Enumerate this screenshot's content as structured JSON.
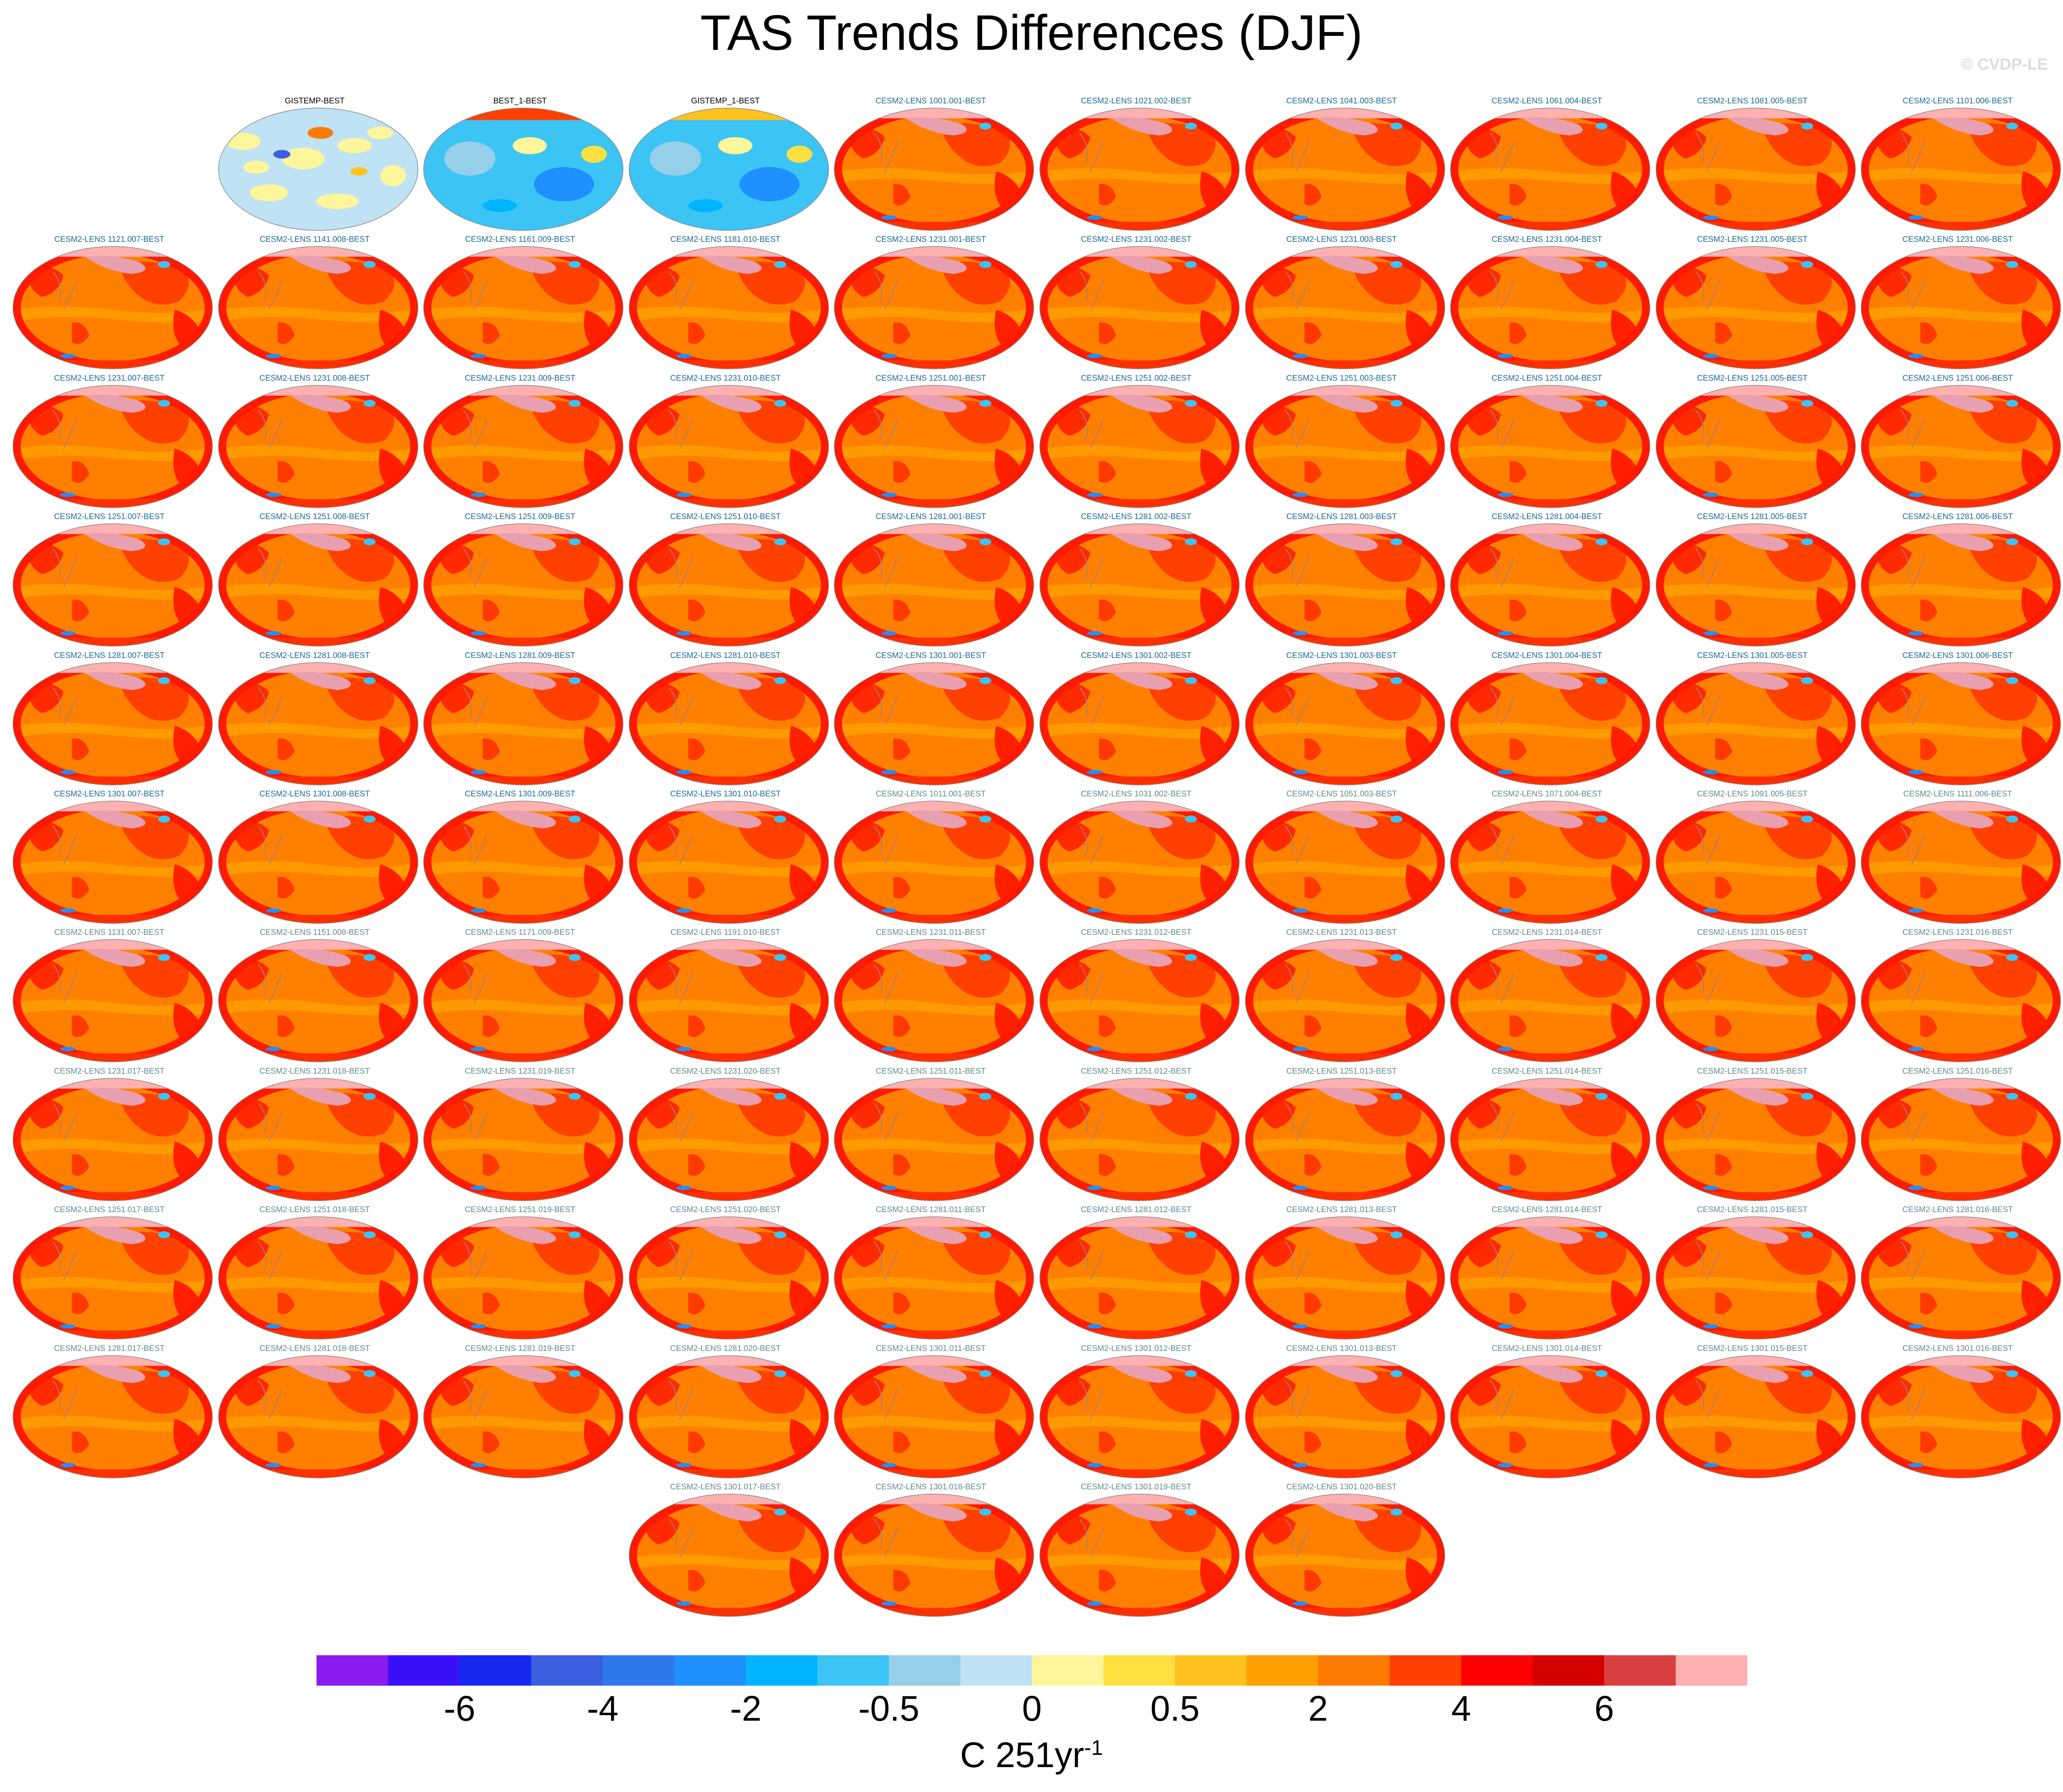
{
  "title": "TAS Trends Differences (DJF)",
  "watermark": "© CVDP-LE",
  "colors": {
    "obs_label": "#000000",
    "first_label": "#1a6a96",
    "second_label": "#5f8c8a"
  },
  "panels": [
    {
      "label": "GISTEMP-BEST",
      "kind": "obs-a"
    },
    {
      "label": "BEST_1-BEST",
      "kind": "obs-b"
    },
    {
      "label": "GISTEMP_1-BEST",
      "kind": "obs-c"
    },
    {
      "label": "CESM2-LENS 1001.001-BEST",
      "kind": "first"
    },
    {
      "label": "CESM2-LENS 1021.002-BEST",
      "kind": "first"
    },
    {
      "label": "CESM2-LENS 1041.003-BEST",
      "kind": "first"
    },
    {
      "label": "CESM2-LENS 1061.004-BEST",
      "kind": "first"
    },
    {
      "label": "CESM2-LENS 1081.005-BEST",
      "kind": "first"
    },
    {
      "label": "CESM2-LENS 1101.006-BEST",
      "kind": "first"
    },
    {
      "label": "CESM2-LENS 1121.007-BEST",
      "kind": "first"
    },
    {
      "label": "CESM2-LENS 1141.008-BEST",
      "kind": "first"
    },
    {
      "label": "CESM2-LENS 1161.009-BEST",
      "kind": "first"
    },
    {
      "label": "CESM2-LENS 1181.010-BEST",
      "kind": "first"
    },
    {
      "label": "CESM2-LENS 1231.001-BEST",
      "kind": "first"
    },
    {
      "label": "CESM2-LENS 1231.002-BEST",
      "kind": "first"
    },
    {
      "label": "CESM2-LENS 1231.003-BEST",
      "kind": "first"
    },
    {
      "label": "CESM2-LENS 1231.004-BEST",
      "kind": "first"
    },
    {
      "label": "CESM2-LENS 1231.005-BEST",
      "kind": "first"
    },
    {
      "label": "CESM2-LENS 1231.006-BEST",
      "kind": "first"
    },
    {
      "label": "CESM2-LENS 1231.007-BEST",
      "kind": "first"
    },
    {
      "label": "CESM2-LENS 1231.008-BEST",
      "kind": "first"
    },
    {
      "label": "CESM2-LENS 1231.009-BEST",
      "kind": "first"
    },
    {
      "label": "CESM2-LENS 1231.010-BEST",
      "kind": "first"
    },
    {
      "label": "CESM2-LENS 1251.001-BEST",
      "kind": "first"
    },
    {
      "label": "CESM2-LENS 1251.002-BEST",
      "kind": "first"
    },
    {
      "label": "CESM2-LENS 1251.003-BEST",
      "kind": "first"
    },
    {
      "label": "CESM2-LENS 1251.004-BEST",
      "kind": "first"
    },
    {
      "label": "CESM2-LENS 1251.005-BEST",
      "kind": "first"
    },
    {
      "label": "CESM2-LENS 1251.006-BEST",
      "kind": "first"
    },
    {
      "label": "CESM2-LENS 1251.007-BEST",
      "kind": "first"
    },
    {
      "label": "CESM2-LENS 1251.008-BEST",
      "kind": "first"
    },
    {
      "label": "CESM2-LENS 1251.009-BEST",
      "kind": "first"
    },
    {
      "label": "CESM2-LENS 1251.010-BEST",
      "kind": "first"
    },
    {
      "label": "CESM2-LENS 1281.001-BEST",
      "kind": "first"
    },
    {
      "label": "CESM2-LENS 1281.002-BEST",
      "kind": "first"
    },
    {
      "label": "CESM2-LENS 1281.003-BEST",
      "kind": "first"
    },
    {
      "label": "CESM2-LENS 1281.004-BEST",
      "kind": "first"
    },
    {
      "label": "CESM2-LENS 1281.005-BEST",
      "kind": "first"
    },
    {
      "label": "CESM2-LENS 1281.006-BEST",
      "kind": "first"
    },
    {
      "label": "CESM2-LENS 1281.007-BEST",
      "kind": "first"
    },
    {
      "label": "CESM2-LENS 1281.008-BEST",
      "kind": "first"
    },
    {
      "label": "CESM2-LENS 1281.009-BEST",
      "kind": "first"
    },
    {
      "label": "CESM2-LENS 1281.010-BEST",
      "kind": "first"
    },
    {
      "label": "CESM2-LENS 1301.001-BEST",
      "kind": "first"
    },
    {
      "label": "CESM2-LENS 1301.002-BEST",
      "kind": "first"
    },
    {
      "label": "CESM2-LENS 1301.003-BEST",
      "kind": "first"
    },
    {
      "label": "CESM2-LENS 1301.004-BEST",
      "kind": "first"
    },
    {
      "label": "CESM2-LENS 1301.005-BEST",
      "kind": "first"
    },
    {
      "label": "CESM2-LENS 1301.006-BEST",
      "kind": "first"
    },
    {
      "label": "CESM2-LENS 1301.007-BEST",
      "kind": "first"
    },
    {
      "label": "CESM2-LENS 1301.008-BEST",
      "kind": "first"
    },
    {
      "label": "CESM2-LENS 1301.009-BEST",
      "kind": "first"
    },
    {
      "label": "CESM2-LENS 1301.010-BEST",
      "kind": "first"
    },
    {
      "label": "CESM2-LENS 1011.001-BEST",
      "kind": "second"
    },
    {
      "label": "CESM2-LENS 1031.002-BEST",
      "kind": "second"
    },
    {
      "label": "CESM2-LENS 1051.003-BEST",
      "kind": "second"
    },
    {
      "label": "CESM2-LENS 1071.004-BEST",
      "kind": "second"
    },
    {
      "label": "CESM2-LENS 1091.005-BEST",
      "kind": "second"
    },
    {
      "label": "CESM2-LENS 1111.006-BEST",
      "kind": "second"
    },
    {
      "label": "CESM2-LENS 1131.007-BEST",
      "kind": "second"
    },
    {
      "label": "CESM2-LENS 1151.008-BEST",
      "kind": "second"
    },
    {
      "label": "CESM2-LENS 1171.009-BEST",
      "kind": "second"
    },
    {
      "label": "CESM2-LENS 1191.010-BEST",
      "kind": "second"
    },
    {
      "label": "CESM2-LENS 1231.011-BEST",
      "kind": "second"
    },
    {
      "label": "CESM2-LENS 1231.012-BEST",
      "kind": "second"
    },
    {
      "label": "CESM2-LENS 1231.013-BEST",
      "kind": "second"
    },
    {
      "label": "CESM2-LENS 1231.014-BEST",
      "kind": "second"
    },
    {
      "label": "CESM2-LENS 1231.015-BEST",
      "kind": "second"
    },
    {
      "label": "CESM2-LENS 1231.016-BEST",
      "kind": "second"
    },
    {
      "label": "CESM2-LENS 1231.017-BEST",
      "kind": "second"
    },
    {
      "label": "CESM2-LENS 1231.018-BEST",
      "kind": "second"
    },
    {
      "label": "CESM2-LENS 1231.019-BEST",
      "kind": "second"
    },
    {
      "label": "CESM2-LENS 1231.020-BEST",
      "kind": "second"
    },
    {
      "label": "CESM2-LENS 1251.011-BEST",
      "kind": "second"
    },
    {
      "label": "CESM2-LENS 1251.012-BEST",
      "kind": "second"
    },
    {
      "label": "CESM2-LENS 1251.013-BEST",
      "kind": "second"
    },
    {
      "label": "CESM2-LENS 1251.014-BEST",
      "kind": "second"
    },
    {
      "label": "CESM2-LENS 1251.015-BEST",
      "kind": "second"
    },
    {
      "label": "CESM2-LENS 1251.016-BEST",
      "kind": "second"
    },
    {
      "label": "CESM2-LENS 1251.017-BEST",
      "kind": "second"
    },
    {
      "label": "CESM2-LENS 1251.018-BEST",
      "kind": "second"
    },
    {
      "label": "CESM2-LENS 1251.019-BEST",
      "kind": "second"
    },
    {
      "label": "CESM2-LENS 1251.020-BEST",
      "kind": "second"
    },
    {
      "label": "CESM2-LENS 1281.011-BEST",
      "kind": "second"
    },
    {
      "label": "CESM2-LENS 1281.012-BEST",
      "kind": "second"
    },
    {
      "label": "CESM2-LENS 1281.013-BEST",
      "kind": "second"
    },
    {
      "label": "CESM2-LENS 1281.014-BEST",
      "kind": "second"
    },
    {
      "label": "CESM2-LENS 1281.015-BEST",
      "kind": "second"
    },
    {
      "label": "CESM2-LENS 1281.016-BEST",
      "kind": "second"
    },
    {
      "label": "CESM2-LENS 1281.017-BEST",
      "kind": "second"
    },
    {
      "label": "CESM2-LENS 1281.018-BEST",
      "kind": "second"
    },
    {
      "label": "CESM2-LENS 1281.019-BEST",
      "kind": "second"
    },
    {
      "label": "CESM2-LENS 1281.020-BEST",
      "kind": "second"
    },
    {
      "label": "CESM2-LENS 1301.011-BEST",
      "kind": "second"
    },
    {
      "label": "CESM2-LENS 1301.012-BEST",
      "kind": "second"
    },
    {
      "label": "CESM2-LENS 1301.013-BEST",
      "kind": "second"
    },
    {
      "label": "CESM2-LENS 1301.014-BEST",
      "kind": "second"
    },
    {
      "label": "CESM2-LENS 1301.015-BEST",
      "kind": "second"
    },
    {
      "label": "CESM2-LENS 1301.016-BEST",
      "kind": "second"
    },
    {
      "label": "CESM2-LENS 1301.017-BEST",
      "kind": "second"
    },
    {
      "label": "CESM2-LENS 1301.018-BEST",
      "kind": "second"
    },
    {
      "label": "CESM2-LENS 1301.019-BEST",
      "kind": "second"
    },
    {
      "label": "CESM2-LENS 1301.020-BEST",
      "kind": "second"
    }
  ],
  "colorbar": {
    "colors": [
      "#8a1cf0",
      "#3a10f8",
      "#1428f0",
      "#3c5ee0",
      "#2f78ea",
      "#1e90ff",
      "#00b4ff",
      "#3cc4f5",
      "#96cfea",
      "#bfe2f5",
      "#fff59a",
      "#ffe040",
      "#ffc21e",
      "#ffa000",
      "#ff7a00",
      "#ff4000",
      "#ff0000",
      "#d40000",
      "#d84040",
      "#ffb0b0"
    ],
    "tick_labels": [
      "-6",
      "-4",
      "-2",
      "-0.5",
      "0",
      "0.5",
      "2",
      "4",
      "6"
    ],
    "tick_boundaries": [
      2,
      4,
      6,
      8,
      10,
      12,
      14,
      16,
      18
    ],
    "units": "C 251yr",
    "units_sup": "-1"
  }
}
